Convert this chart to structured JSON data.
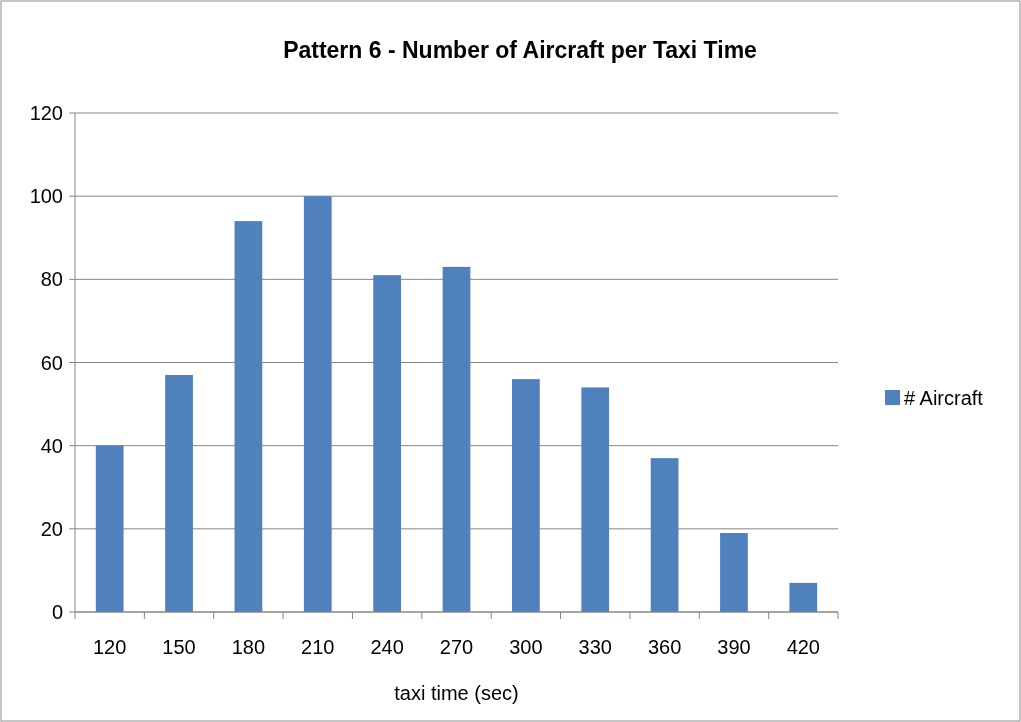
{
  "chart_data": {
    "type": "bar",
    "title": "Pattern 6 - Number of Aircraft per Taxi Time",
    "xlabel": "taxi time (sec)",
    "categories": [
      "120",
      "150",
      "180",
      "210",
      "240",
      "270",
      "300",
      "330",
      "360",
      "390",
      "420"
    ],
    "series": [
      {
        "name": "# Aircraft",
        "color": "#4f81bd",
        "values": [
          40,
          57,
          94,
          100,
          81,
          83,
          56,
          54,
          37,
          19,
          7
        ]
      }
    ],
    "ylim": [
      0,
      120
    ],
    "yticks": [
      0,
      20,
      40,
      60,
      80,
      100,
      120
    ],
    "grid": "y",
    "legend": "right"
  }
}
